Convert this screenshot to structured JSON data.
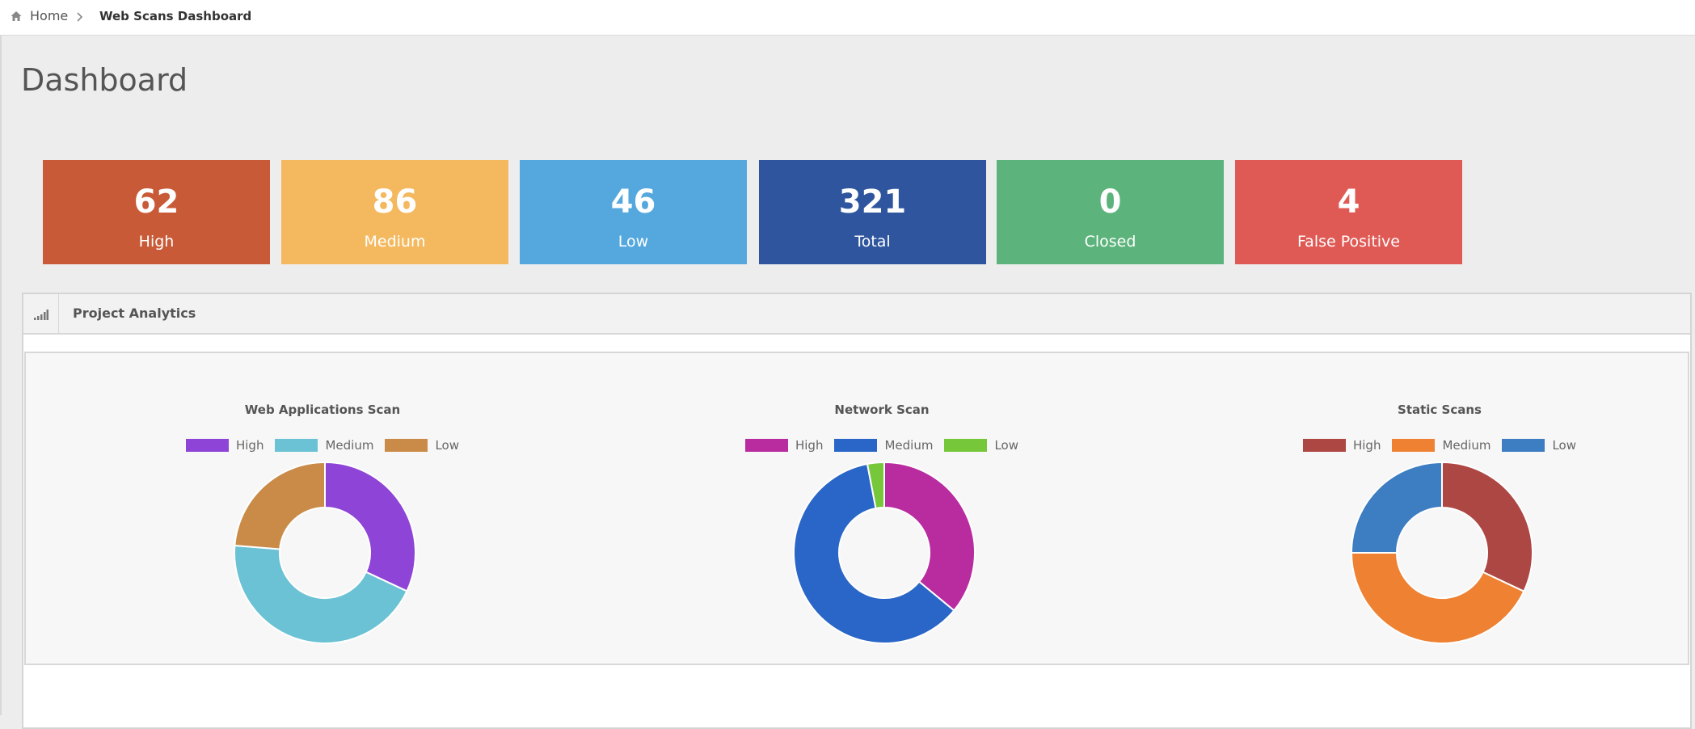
{
  "breadcrumb": {
    "home_icon": "home-icon",
    "home_label": "Home",
    "separator_icon": "chevron-right-icon",
    "current_label": "Web Scans Dashboard"
  },
  "page": {
    "title": "Dashboard"
  },
  "stats": [
    {
      "value": "62",
      "label": "High",
      "color": "#c95a37"
    },
    {
      "value": "86",
      "label": "Medium",
      "color": "#f4b95f"
    },
    {
      "value": "46",
      "label": "Low",
      "color": "#55a8de"
    },
    {
      "value": "321",
      "label": "Total",
      "color": "#2e559e"
    },
    {
      "value": "0",
      "label": "Closed",
      "color": "#5cb47c"
    },
    {
      "value": "4",
      "label": "False Positive",
      "color": "#e05a55"
    }
  ],
  "panel": {
    "icon": "signal-bars-icon",
    "title": "Project Analytics"
  },
  "chart_data": [
    {
      "type": "pie",
      "title": "Web Applications Scan",
      "categories": [
        "High",
        "Medium",
        "Low"
      ],
      "values": [
        62,
        86,
        46
      ],
      "colors": [
        "#8e44d6",
        "#6bc2d4",
        "#c98b47"
      ],
      "legend": "top"
    },
    {
      "type": "pie",
      "title": "Network Scan",
      "categories": [
        "High",
        "Medium",
        "Low"
      ],
      "values": [
        36,
        61,
        3
      ],
      "colors": [
        "#b92ca0",
        "#2966c7",
        "#76c83a"
      ],
      "legend": "top"
    },
    {
      "type": "pie",
      "title": "Static Scans",
      "categories": [
        "High",
        "Medium",
        "Low"
      ],
      "values": [
        32,
        43,
        25
      ],
      "colors": [
        "#ad4744",
        "#ef8133",
        "#3d7dc2"
      ],
      "legend": "top"
    }
  ]
}
